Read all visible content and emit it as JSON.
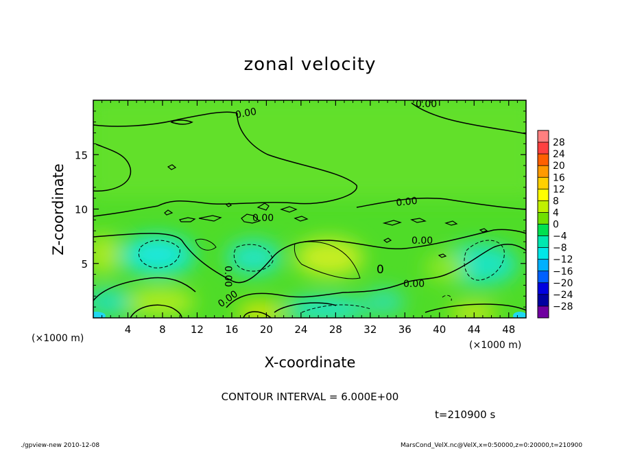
{
  "chart_data": {
    "type": "heatmap",
    "title": "zonal velocity",
    "xlabel": "X-coordinate",
    "ylabel": "Z-coordinate",
    "xlim": [
      0,
      50
    ],
    "ylim": [
      0,
      20
    ],
    "x_ticks": [
      4,
      8,
      12,
      16,
      20,
      24,
      28,
      32,
      36,
      40,
      44,
      48
    ],
    "y_ticks": [
      5,
      10,
      15
    ],
    "x_unit": "(×1000 m)",
    "y_unit": "(×1000 m)",
    "colorbar": {
      "levels": [
        28,
        24,
        20,
        16,
        12,
        8,
        4,
        0,
        -4,
        -8,
        -12,
        -16,
        -20,
        -24,
        -28
      ],
      "colors": [
        "#ff8080",
        "#ff4040",
        "#ff6000",
        "#ff9a00",
        "#ffd000",
        "#ffff00",
        "#c0f000",
        "#70e000",
        "#00e050",
        "#00e8b0",
        "#00e8e8",
        "#00b0ff",
        "#0060ff",
        "#0000e0",
        "#0000a0",
        "#7000a0"
      ]
    },
    "contour_labels": [
      "0.00",
      "0.00",
      "0.00",
      "0.00",
      "0.00",
      "0.00",
      "0.00",
      "0.00",
      "0.00",
      "0"
    ],
    "contour_interval": "CONTOUR INTERVAL = 6.000E+00",
    "time_label": "t=210900 s"
  },
  "footer": {
    "left": "./gpview-new  2010-12-08",
    "right": "MarsCond_VelX.nc@VelX,x=0:50000,z=0:20000,t=210900"
  }
}
